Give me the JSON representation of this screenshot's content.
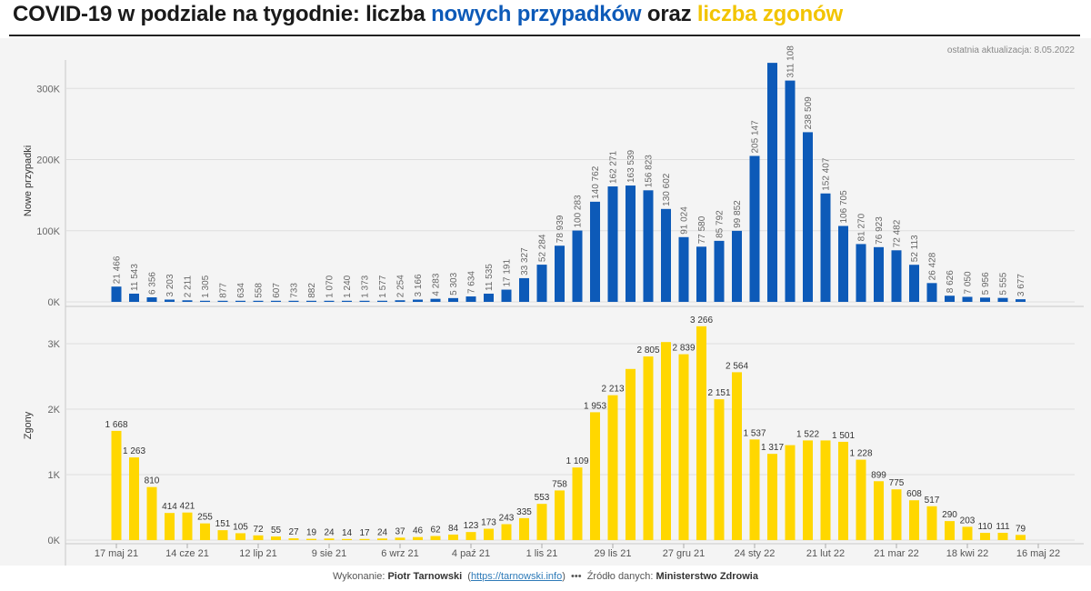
{
  "header": {
    "title_part1": "COVID-19 w podziale na tygodnie: liczba ",
    "title_part2": "nowych przypadków",
    "title_part3": " oraz ",
    "title_part4": "liczba zgonów",
    "updated": "ostatnia aktualizacja: 8.05.2022"
  },
  "footer": {
    "made_by_label": "Wykonanie: ",
    "author": "Piotr Tarnowski",
    "link_open": "(",
    "link": "https://tarnowski.info",
    "link_close": ")",
    "dots": "•••",
    "source_label": "Źródło danych: ",
    "source": "Ministerstwo Zdrowia"
  },
  "colors": {
    "cases": "#0d5ab8",
    "deaths": "#ffd700",
    "grid": "#dedede",
    "panel": "#f4f4f4"
  },
  "chart_data": [
    {
      "type": "bar",
      "ylabel": "Nowe przypadki",
      "ylim": [
        0,
        340000
      ],
      "yticks": [
        {
          "value": 0,
          "label": "0K"
        },
        {
          "value": 100000,
          "label": "100K"
        },
        {
          "value": 200000,
          "label": "200K"
        },
        {
          "value": 300000,
          "label": "300K"
        }
      ],
      "values": [
        21466,
        11543,
        6356,
        3203,
        2211,
        1305,
        877,
        634,
        558,
        607,
        733,
        882,
        1070,
        1240,
        1373,
        1577,
        2254,
        3166,
        4283,
        5303,
        7634,
        11535,
        17191,
        33327,
        52284,
        78939,
        100283,
        140762,
        162271,
        163539,
        156823,
        130602,
        91024,
        77580,
        85792,
        99852,
        205147,
        336000,
        311108,
        238509,
        152407,
        106705,
        81270,
        76923,
        72482,
        52113,
        26428,
        8626,
        7050,
        5956,
        5555,
        3677
      ],
      "labels": [
        "21 466",
        "11 543",
        "6 356",
        "3 203",
        "2 211",
        "1 305",
        "877",
        "634",
        "558",
        "607",
        "733",
        "882",
        "1 070",
        "1 240",
        "1 373",
        "1 577",
        "2 254",
        "3 166",
        "4 283",
        "5 303",
        "7 634",
        "11 535",
        "17 191",
        "33 327",
        "52 284",
        "78 939",
        "100 283",
        "140 762",
        "162 271",
        "163 539",
        "156 823",
        "130 602",
        "91 024",
        "77 580",
        "85 792",
        "99 852",
        "205 147",
        "",
        "311 108",
        "238 509",
        "152 407",
        "106 705",
        "81 270",
        "76 923",
        "72 482",
        "52 113",
        "26 428",
        "8 626",
        "7 050",
        "5 956",
        "5 555",
        "3 677"
      ]
    },
    {
      "type": "bar",
      "ylabel": "Zgony",
      "ylim": [
        0,
        3500
      ],
      "yticks": [
        {
          "value": 0,
          "label": "0K"
        },
        {
          "value": 1000,
          "label": "1K"
        },
        {
          "value": 2000,
          "label": "2K"
        },
        {
          "value": 3000,
          "label": "3K"
        }
      ],
      "values": [
        1668,
        1263,
        810,
        414,
        421,
        255,
        151,
        105,
        72,
        55,
        27,
        19,
        24,
        14,
        17,
        24,
        37,
        46,
        62,
        84,
        123,
        173,
        243,
        335,
        553,
        758,
        1109,
        1953,
        2213,
        2614,
        2805,
        3025,
        2839,
        3266,
        2151,
        2564,
        1537,
        1317,
        1450,
        1522,
        1522,
        1501,
        1228,
        899,
        775,
        608,
        517,
        290,
        203,
        110,
        111,
        79
      ],
      "labels": [
        "1 668",
        "1 263",
        "810",
        "414",
        "421",
        "255",
        "151",
        "105",
        "72",
        "55",
        "27",
        "19",
        "24",
        "14",
        "17",
        "24",
        "37",
        "46",
        "62",
        "84",
        "123",
        "173",
        "243",
        "335",
        "553",
        "758",
        "1 109",
        "1 953",
        "2 213",
        "",
        "2 805",
        "",
        "2 839",
        "3 266",
        "2 151",
        "2 564",
        "1 537",
        "1 317",
        "",
        "1 522",
        "",
        "1 501",
        "1 228",
        "899",
        "775",
        "608",
        "517",
        "290",
        "203",
        "110",
        "111",
        "79"
      ]
    }
  ],
  "x_axis": {
    "ticks": [
      {
        "index": 0,
        "label": "17 maj 21"
      },
      {
        "index": 4,
        "label": "14 cze 21"
      },
      {
        "index": 8,
        "label": "12 lip 21"
      },
      {
        "index": 12,
        "label": "9 sie 21"
      },
      {
        "index": 16,
        "label": "6 wrz 21"
      },
      {
        "index": 20,
        "label": "4 paź 21"
      },
      {
        "index": 24,
        "label": "1 lis 21"
      },
      {
        "index": 28,
        "label": "29 lis 21"
      },
      {
        "index": 32,
        "label": "27 gru 21"
      },
      {
        "index": 36,
        "label": "24 sty 22"
      },
      {
        "index": 40,
        "label": "21 lut 22"
      },
      {
        "index": 44,
        "label": "21 mar 22"
      },
      {
        "index": 48,
        "label": "18 kwi 22"
      },
      {
        "index": 52,
        "label": "16 maj 22"
      }
    ]
  }
}
